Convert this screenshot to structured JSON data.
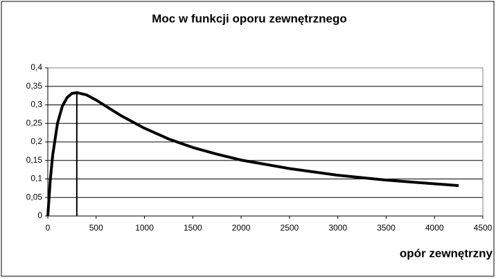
{
  "chart_data": {
    "type": "line",
    "title": "Moc w funkcji oporu zewnętrznego",
    "x_label": "opór zewnętrzny",
    "series": [
      {
        "color": "#000000",
        "x": [
          0,
          25,
          50,
          100,
          150,
          200,
          250,
          300,
          400,
          500,
          750,
          1000,
          1250,
          1500,
          1750,
          2000,
          2500,
          3000,
          3500,
          4000,
          4250
        ],
        "values": [
          0,
          0.095,
          0.163,
          0.25,
          0.296,
          0.32,
          0.331,
          0.333,
          0.327,
          0.313,
          0.272,
          0.237,
          0.208,
          0.185,
          0.167,
          0.151,
          0.128,
          0.11,
          0.097,
          0.087,
          0.082
        ]
      },
      {
        "color": "#000000",
        "x": [
          300,
          300
        ],
        "values": [
          0,
          0.333
        ]
      }
    ],
    "xlim": [
      0,
      4500
    ],
    "xticks": [
      0,
      500,
      1000,
      1500,
      2000,
      2500,
      3000,
      3500,
      4000,
      4500
    ],
    "ylim": [
      0,
      0.4
    ],
    "yticks": [
      0,
      {
        "value": 0.05,
        "label": "0,05"
      },
      {
        "value": 0.1,
        "label": "0,1"
      },
      {
        "value": 0.15,
        "label": "0,15"
      },
      {
        "value": 0.2,
        "label": "0,2"
      },
      {
        "value": 0.25,
        "label": "0,25"
      },
      {
        "value": 0.3,
        "label": "0,3"
      },
      {
        "value": 0.35,
        "label": "0,35"
      },
      {
        "value": 0.4,
        "label": "0,4"
      }
    ],
    "grid": true
  }
}
